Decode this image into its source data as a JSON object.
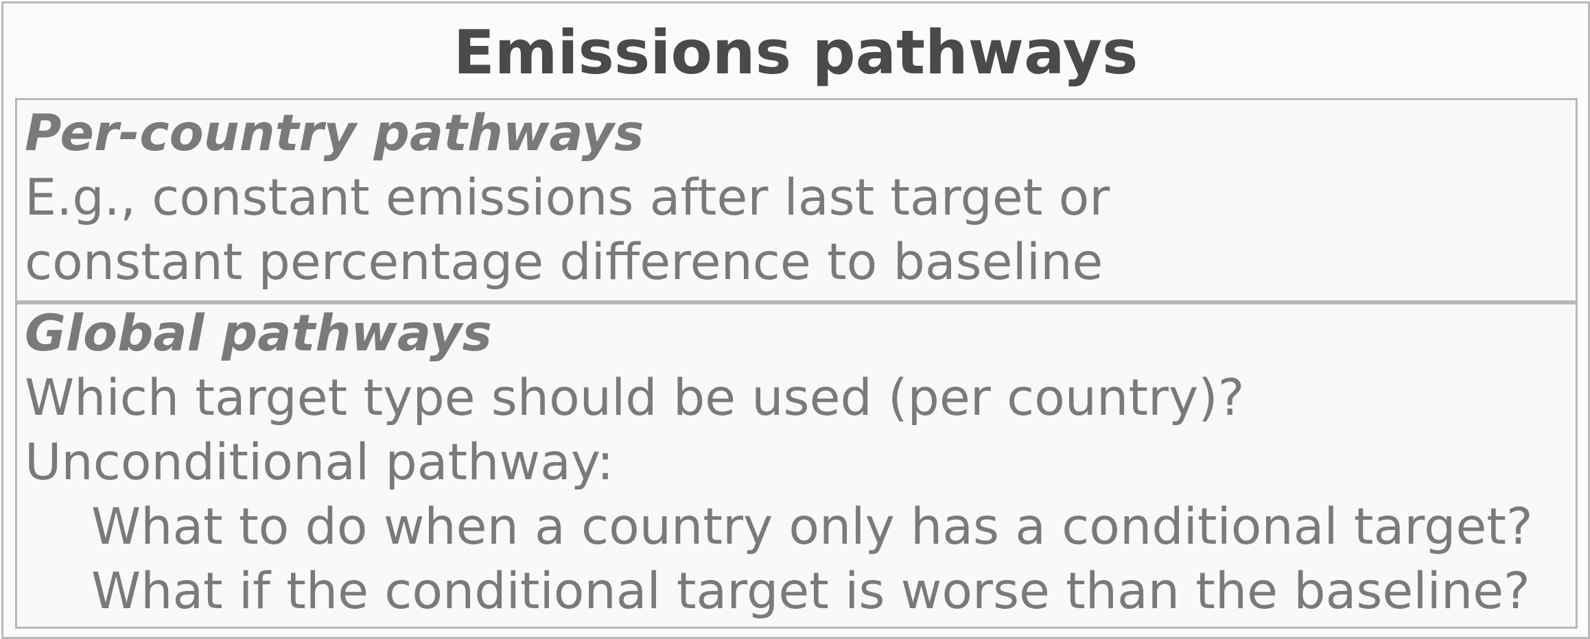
{
  "title": "Emissions pathways",
  "sections": [
    {
      "heading": "Per-country pathways",
      "lines": [
        "E.g., constant emissions after last target or",
        "constant percentage difference to baseline"
      ]
    },
    {
      "heading": "Global pathways",
      "lines": [
        "Which target type should be used (per country)?",
        "Unconditional pathway:",
        "What to do when a country only has a conditional target?",
        "What if the conditional target is worse than the baseline?"
      ]
    }
  ]
}
